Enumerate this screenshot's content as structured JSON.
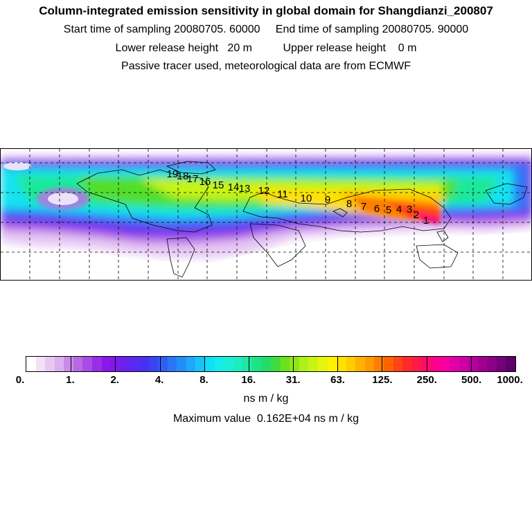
{
  "header": {
    "title": "Column-integrated emission sensitivity in global domain for Shangdianzi_200807",
    "line2": "Start time of sampling 20080705. 60000     End time of sampling 20080705. 90000",
    "line3": "Lower release height   20 m          Upper release height    0 m",
    "line4": "Passive tracer used, meteorological data are from ECMWF"
  },
  "map": {
    "trajectory_labels": [
      "1",
      "2",
      "3",
      "4",
      "5",
      "6",
      "7",
      "8",
      "9",
      "10",
      "11",
      "12",
      "13",
      "14",
      "15",
      "16",
      "17",
      "18",
      "19"
    ]
  },
  "colorbar": {
    "labels": [
      "0.",
      "1.",
      "2.",
      "4.",
      "8.",
      "16.",
      "31.",
      "63.",
      "125.",
      "250.",
      "500.",
      "1000."
    ],
    "colors": [
      "#ffffff",
      "#f2e2f8",
      "#e8c8f2",
      "#dcb0ee",
      "#c98ae8",
      "#b968e6",
      "#a94ce6",
      "#9a2ee8",
      "#8a18ea",
      "#7c1aec",
      "#6a22ee",
      "#5a2af0",
      "#4830f2",
      "#3a44f4",
      "#2f5ef5",
      "#2a76f6",
      "#248ef8",
      "#1fa8f8",
      "#1ac2f8",
      "#10e0f6",
      "#16eaea",
      "#1aeed8",
      "#1cecbe",
      "#1ee8a2",
      "#1ee286",
      "#22dc6a",
      "#3edc3c",
      "#6ae21c",
      "#8ee618",
      "#aef01a",
      "#c8f414",
      "#e4f40e",
      "#fff200",
      "#ffe000",
      "#ffcc00",
      "#ffb200",
      "#ff9a00",
      "#ff7e00",
      "#ff6200",
      "#ff4418",
      "#ff2a2a",
      "#ff1a48",
      "#ff0c6c",
      "#ff008c",
      "#f800a0",
      "#e400a8",
      "#cc00a8",
      "#b6009e",
      "#a00092",
      "#8c0088",
      "#74007a",
      "#5e0068"
    ]
  },
  "units": "ns m / kg",
  "max_value": "Maximum value  0.162E+04 ns m / kg"
}
